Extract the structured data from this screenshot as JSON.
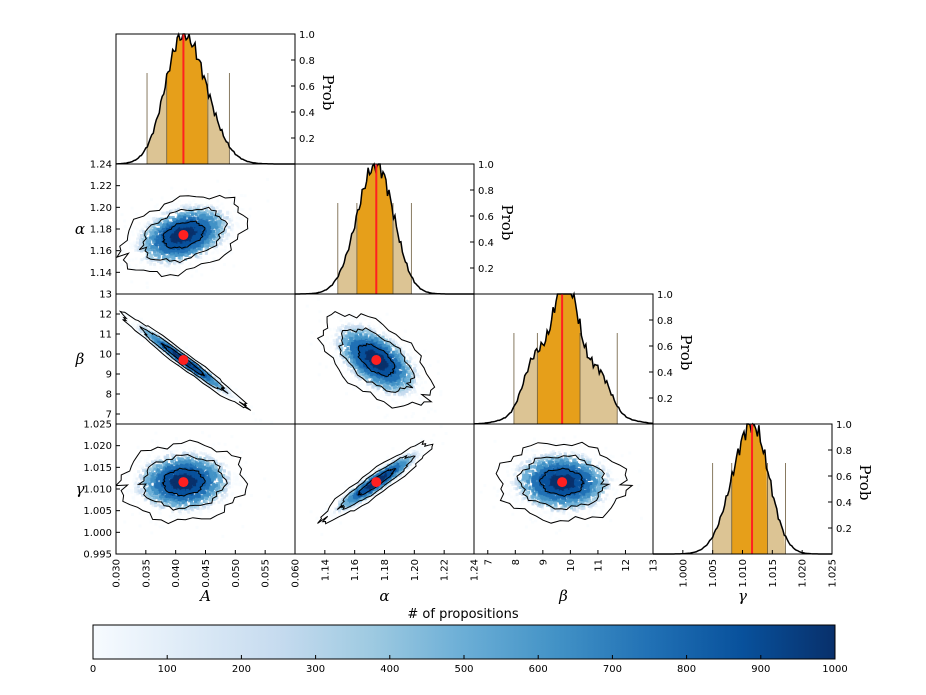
{
  "chart_data": {
    "type": "corner",
    "parameters": [
      {
        "key": "A",
        "label": "A",
        "range": [
          0.03,
          0.06
        ],
        "ticks": [
          "0.030",
          "0.035",
          "0.040",
          "0.045",
          "0.050",
          "0.055",
          "0.060"
        ],
        "best": 0.0413,
        "ci68": [
          0.0385,
          0.0454
        ],
        "ci95": [
          0.0352,
          0.049
        ]
      },
      {
        "key": "alpha",
        "label": "α",
        "range": [
          1.12,
          1.24
        ],
        "ticks": [
          "1.14",
          "1.16",
          "1.18",
          "1.20",
          "1.22",
          "1.24"
        ],
        "best": 1.1745,
        "ci68": [
          1.1615,
          1.1857
        ],
        "ci95": [
          1.1487,
          1.198
        ]
      },
      {
        "key": "beta",
        "label": "β",
        "range": [
          6.5,
          13.0
        ],
        "ticks": [
          "7",
          "8",
          "9",
          "10",
          "11",
          "12",
          "13"
        ],
        "best": 9.7,
        "ci68": [
          8.8,
          10.35
        ],
        "ci95": [
          7.95,
          11.7
        ]
      },
      {
        "key": "gamma",
        "label": "γ",
        "range": [
          0.995,
          1.025
        ],
        "ticks": [
          "1.000",
          "1.005",
          "1.010",
          "1.015",
          "1.020",
          "1.025"
        ],
        "best": 1.0116,
        "ci68": [
          1.0082,
          1.0142
        ],
        "ci95": [
          1.005,
          1.0172
        ]
      }
    ],
    "row_ticks": {
      "alpha": [
        "1.14",
        "1.16",
        "1.18",
        "1.20",
        "1.22"
      ],
      "beta": [
        "7",
        "8",
        "9",
        "10",
        "11",
        "12",
        "13"
      ],
      "gamma": [
        "0.995",
        "1.000",
        "1.005",
        "1.010",
        "1.015",
        "1.020",
        "1.025"
      ],
      "first_row_bottom": "1.24"
    },
    "prob_axis": {
      "label": "Prob",
      "ticks": [
        "0.2",
        "0.4",
        "0.6",
        "0.8",
        "1.0"
      ],
      "range": [
        0,
        1
      ]
    },
    "joint_panels": [
      {
        "x": "A",
        "y": "alpha",
        "corr": 0.35
      },
      {
        "x": "A",
        "y": "beta",
        "corr": -0.98
      },
      {
        "x": "alpha",
        "y": "beta",
        "corr": -0.55
      },
      {
        "x": "A",
        "y": "gamma",
        "corr": 0.05
      },
      {
        "x": "alpha",
        "y": "gamma",
        "corr": 0.93
      },
      {
        "x": "beta",
        "y": "gamma",
        "corr": -0.05
      }
    ],
    "colorbar": {
      "title": "# of propositions",
      "range": [
        0,
        1000
      ],
      "ticks": [
        "0",
        "100",
        "200",
        "300",
        "400",
        "500",
        "600",
        "700",
        "800",
        "900",
        "1000"
      ],
      "colormap": "Blues"
    },
    "colors": {
      "best_fit": "#ff2020",
      "ci68_fill": "#e69f1a",
      "ci95_fill": "#dcc494",
      "contour": "#000000",
      "hist_line": "#000000"
    }
  }
}
